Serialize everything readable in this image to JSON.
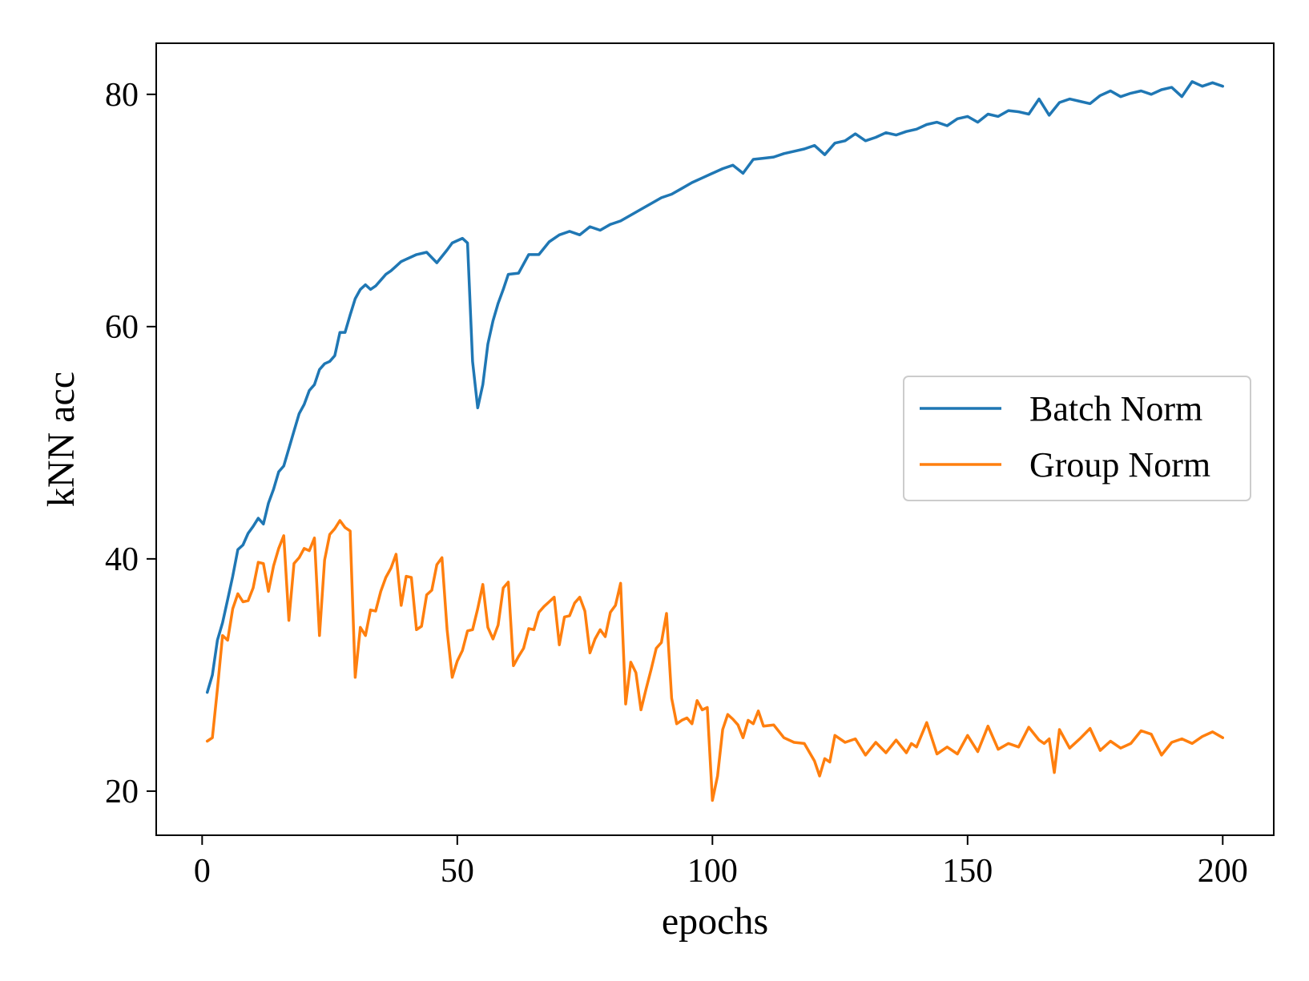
{
  "chart_data": {
    "type": "line",
    "title": "",
    "xlabel": "epochs",
    "ylabel": "kNN acc",
    "xlim": [
      -9,
      210
    ],
    "ylim": [
      16.2,
      84.4
    ],
    "xticks": [
      0,
      50,
      100,
      150,
      200
    ],
    "yticks": [
      20,
      40,
      60,
      80
    ],
    "grid": false,
    "legend_position": "center-right",
    "series": [
      {
        "name": "Batch Norm",
        "color": "#1f77b4",
        "x": [
          1,
          2,
          3,
          4,
          5,
          6,
          7,
          8,
          9,
          10,
          11,
          12,
          13,
          14,
          15,
          16,
          17,
          18,
          19,
          20,
          21,
          22,
          23,
          24,
          25,
          26,
          27,
          28,
          29,
          30,
          31,
          32,
          33,
          34,
          35,
          36,
          37,
          38,
          39,
          40,
          42,
          44,
          46,
          48,
          49,
          50,
          51,
          52,
          53,
          54,
          55,
          56,
          57,
          58,
          59,
          60,
          62,
          64,
          66,
          68,
          70,
          72,
          74,
          76,
          78,
          80,
          82,
          84,
          86,
          88,
          90,
          92,
          94,
          96,
          98,
          100,
          102,
          104,
          106,
          108,
          110,
          112,
          114,
          116,
          118,
          120,
          122,
          124,
          126,
          128,
          130,
          132,
          134,
          136,
          138,
          140,
          142,
          144,
          146,
          148,
          150,
          152,
          154,
          156,
          158,
          160,
          162,
          164,
          166,
          168,
          170,
          172,
          174,
          176,
          178,
          180,
          182,
          184,
          186,
          188,
          190,
          192,
          194,
          196,
          198,
          200
        ],
        "y": [
          28.5,
          30.0,
          33.0,
          34.5,
          36.5,
          38.5,
          40.8,
          41.2,
          42.2,
          42.8,
          43.5,
          43.0,
          44.8,
          46.0,
          47.5,
          48.0,
          49.5,
          51.0,
          52.5,
          53.3,
          54.5,
          55.0,
          56.3,
          56.8,
          57.0,
          57.5,
          59.5,
          59.5,
          61.0,
          62.4,
          63.2,
          63.6,
          63.2,
          63.5,
          64.0,
          64.5,
          64.8,
          65.2,
          65.6,
          65.8,
          66.2,
          66.4,
          65.5,
          66.6,
          67.2,
          67.4,
          67.6,
          67.2,
          57.0,
          53.0,
          55.0,
          58.5,
          60.5,
          62.0,
          63.2,
          64.5,
          64.6,
          66.2,
          66.2,
          67.3,
          67.9,
          68.2,
          67.9,
          68.6,
          68.3,
          68.8,
          69.1,
          69.6,
          70.1,
          70.6,
          71.1,
          71.4,
          71.9,
          72.4,
          72.8,
          73.2,
          73.6,
          73.9,
          73.2,
          74.4,
          74.5,
          74.6,
          74.9,
          75.1,
          75.3,
          75.6,
          74.8,
          75.8,
          76.0,
          76.6,
          76.0,
          76.3,
          76.7,
          76.5,
          76.8,
          77.0,
          77.4,
          77.6,
          77.3,
          77.9,
          78.1,
          77.6,
          78.3,
          78.1,
          78.6,
          78.5,
          78.3,
          79.6,
          78.2,
          79.3,
          79.6,
          79.4,
          79.2,
          79.9,
          80.3,
          79.8,
          80.1,
          80.3,
          80.0,
          80.4,
          80.6,
          79.8,
          81.1,
          80.7,
          81.0,
          80.7
        ]
      },
      {
        "name": "Group Norm",
        "color": "#ff7f0e",
        "x": [
          1,
          2,
          3,
          4,
          5,
          6,
          7,
          8,
          9,
          10,
          11,
          12,
          13,
          14,
          15,
          16,
          17,
          18,
          19,
          20,
          21,
          22,
          23,
          24,
          25,
          26,
          27,
          28,
          29,
          30,
          31,
          32,
          33,
          34,
          35,
          36,
          37,
          38,
          39,
          40,
          41,
          42,
          43,
          44,
          45,
          46,
          47,
          48,
          49,
          50,
          51,
          52,
          53,
          54,
          55,
          56,
          57,
          58,
          59,
          60,
          61,
          62,
          63,
          64,
          65,
          66,
          67,
          68,
          69,
          70,
          71,
          72,
          73,
          74,
          75,
          76,
          77,
          78,
          79,
          80,
          81,
          82,
          83,
          84,
          85,
          86,
          87,
          88,
          89,
          90,
          91,
          92,
          93,
          94,
          95,
          96,
          97,
          98,
          99,
          100,
          101,
          102,
          103,
          104,
          105,
          106,
          107,
          108,
          109,
          110,
          112,
          114,
          116,
          118,
          120,
          121,
          122,
          123,
          124,
          126,
          128,
          130,
          132,
          134,
          136,
          138,
          139,
          140,
          142,
          144,
          146,
          148,
          150,
          152,
          154,
          156,
          158,
          160,
          162,
          164,
          165,
          166,
          167,
          168,
          170,
          172,
          174,
          176,
          178,
          180,
          182,
          184,
          186,
          188,
          190,
          192,
          194,
          196,
          198,
          200
        ],
        "y": [
          24.3,
          24.6,
          28.8,
          33.4,
          33.0,
          35.7,
          37.0,
          36.3,
          36.4,
          37.5,
          39.7,
          39.6,
          37.2,
          39.4,
          40.9,
          42.0,
          34.7,
          39.6,
          40.1,
          40.9,
          40.7,
          41.8,
          33.4,
          39.9,
          42.1,
          42.6,
          43.3,
          42.7,
          42.4,
          29.8,
          34.1,
          33.4,
          35.6,
          35.5,
          37.2,
          38.4,
          39.2,
          40.4,
          36.0,
          38.5,
          38.4,
          33.9,
          34.2,
          36.9,
          37.3,
          39.5,
          40.1,
          33.9,
          29.8,
          31.2,
          32.1,
          33.8,
          33.9,
          35.7,
          37.8,
          34.1,
          33.1,
          34.3,
          37.5,
          38.0,
          30.8,
          31.6,
          32.3,
          34.0,
          33.9,
          35.4,
          35.9,
          36.3,
          36.7,
          32.6,
          35.0,
          35.1,
          36.2,
          36.7,
          35.5,
          31.9,
          33.1,
          33.9,
          33.3,
          35.4,
          36.0,
          37.9,
          27.5,
          31.1,
          30.2,
          27.0,
          28.8,
          30.5,
          32.3,
          32.8,
          35.3,
          28.0,
          25.8,
          26.1,
          26.3,
          25.8,
          27.8,
          27.0,
          27.2,
          19.2,
          21.3,
          25.3,
          26.6,
          26.2,
          25.7,
          24.6,
          26.1,
          25.8,
          26.9,
          25.6,
          25.7,
          24.6,
          24.2,
          24.1,
          22.6,
          21.3,
          22.8,
          22.5,
          24.8,
          24.2,
          24.5,
          23.1,
          24.2,
          23.3,
          24.4,
          23.3,
          24.1,
          23.8,
          25.9,
          23.2,
          23.8,
          23.2,
          24.8,
          23.4,
          25.6,
          23.6,
          24.1,
          23.8,
          25.5,
          24.4,
          24.1,
          24.5,
          21.6,
          25.3,
          23.7,
          24.5,
          25.4,
          23.5,
          24.3,
          23.7,
          24.1,
          25.2,
          24.9,
          23.1,
          24.2,
          24.5,
          24.1,
          24.7,
          25.1,
          24.6
        ]
      }
    ]
  }
}
